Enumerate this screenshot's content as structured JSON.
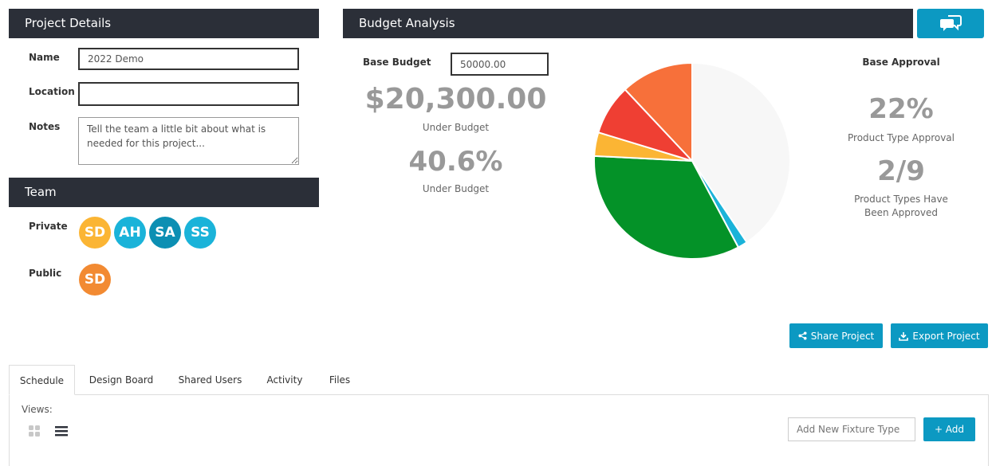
{
  "project_details": {
    "title": "Project Details",
    "name_label": "Name",
    "name_value": "2022 Demo",
    "location_label": "Location",
    "location_value": "",
    "notes_label": "Notes",
    "notes_value": "Tell the team a little bit about what is needed for this project..."
  },
  "team": {
    "title": "Team",
    "private_label": "Private",
    "private_members": [
      {
        "initials": "SD",
        "color": "#fbb534"
      },
      {
        "initials": "AH",
        "color": "#1ab3d9"
      },
      {
        "initials": "SA",
        "color": "#0c8fb3"
      },
      {
        "initials": "SS",
        "color": "#1ab3d9"
      }
    ],
    "public_label": "Public",
    "public_members": [
      {
        "initials": "SD",
        "color": "#f28a32"
      }
    ]
  },
  "budget": {
    "title": "Budget Analysis",
    "base_budget_label": "Base Budget",
    "base_budget_value": "50000.00",
    "under_amount": "$20,300.00",
    "under_amount_label": "Under Budget",
    "under_percent": "40.6%",
    "under_percent_label": "Under Budget"
  },
  "approval": {
    "title": "Base Approval",
    "percent": "22%",
    "percent_label": "Product Type Approval",
    "ratio": "2/9",
    "ratio_label_line1": "Product Types Have",
    "ratio_label_line2": "Been Approved"
  },
  "chart_data": {
    "type": "pie",
    "slices": [
      {
        "value": 40.6,
        "color": "#f7f7f7"
      },
      {
        "value": 1.6,
        "color": "#1ab3d9"
      },
      {
        "value": 33.6,
        "color": "#049228"
      },
      {
        "value": 3.9,
        "color": "#fbb534"
      },
      {
        "value": 8.3,
        "color": "#ef3f33"
      },
      {
        "value": 12.0,
        "color": "#f7703a"
      }
    ]
  },
  "actions": {
    "chat_icon": "chat-bubbles-icon",
    "share_label": "Share Project",
    "export_label": "Export Project"
  },
  "tabs": [
    {
      "label": "Schedule",
      "active": true
    },
    {
      "label": "Design Board",
      "active": false
    },
    {
      "label": "Shared Users",
      "active": false
    },
    {
      "label": "Activity",
      "active": false
    },
    {
      "label": "Files",
      "active": false
    }
  ],
  "schedule": {
    "views_label": "Views:",
    "fixture_placeholder": "Add New Fixture Type",
    "add_label": "+ Add"
  }
}
